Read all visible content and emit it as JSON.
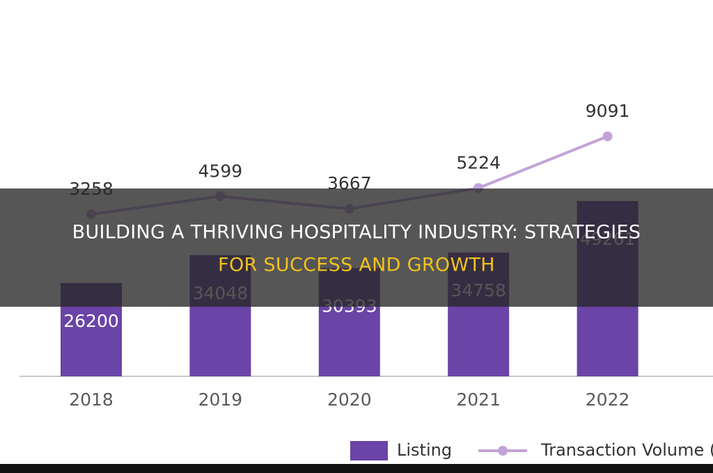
{
  "chart_data": {
    "type": "bar-line",
    "categories": [
      "2018",
      "2019",
      "2020",
      "2021",
      "2022"
    ],
    "series": [
      {
        "name": "Listing",
        "type": "bar",
        "color": "#6a44a6",
        "values": [
          26200,
          34048,
          30393,
          34758,
          49261
        ]
      },
      {
        "name": "Transaction Volume (B",
        "type": "line",
        "color": "#c3a2d8",
        "values": [
          3258,
          4599,
          3667,
          5224,
          9091
        ]
      }
    ],
    "legend": "bottom"
  },
  "banner": {
    "line1": "BUILDING A THRIVING HOSPITALITY INDUSTRY: STRATEGIES",
    "line2": "FOR SUCCESS AND GROWTH"
  }
}
